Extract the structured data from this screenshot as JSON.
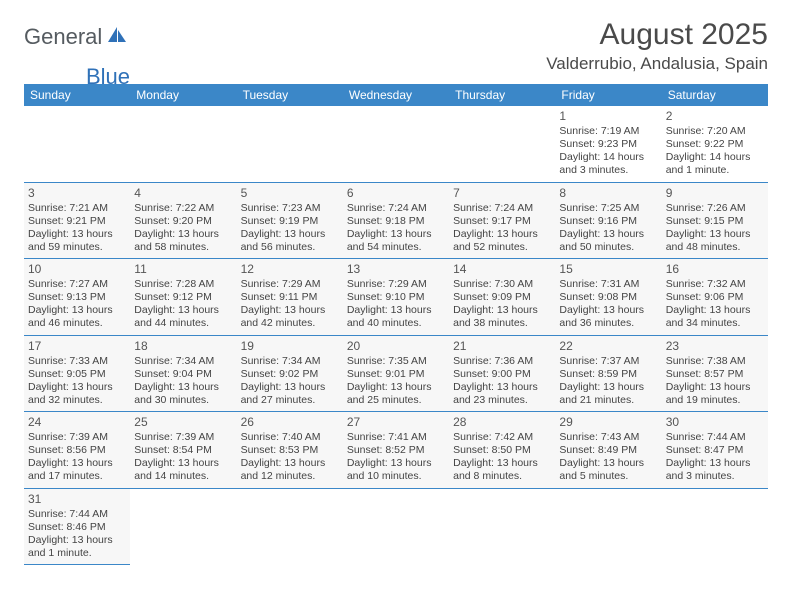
{
  "logo": {
    "text1": "General",
    "text2": "Blue"
  },
  "title": "August 2025",
  "location": "Valderrubio, Andalusia, Spain",
  "colors": {
    "header_bg": "#3b87c8",
    "header_text": "#ffffff",
    "cell_bg": "#f7f7f7",
    "border": "#3b87c8",
    "logo_gray": "#555b60",
    "logo_blue": "#2f71b8"
  },
  "day_headers": [
    "Sunday",
    "Monday",
    "Tuesday",
    "Wednesday",
    "Thursday",
    "Friday",
    "Saturday"
  ],
  "weeks": [
    [
      null,
      null,
      null,
      null,
      null,
      {
        "n": "1",
        "sr": "Sunrise: 7:19 AM",
        "ss": "Sunset: 9:23 PM",
        "dl": "Daylight: 14 hours and 3 minutes."
      },
      {
        "n": "2",
        "sr": "Sunrise: 7:20 AM",
        "ss": "Sunset: 9:22 PM",
        "dl": "Daylight: 14 hours and 1 minute."
      }
    ],
    [
      {
        "n": "3",
        "sr": "Sunrise: 7:21 AM",
        "ss": "Sunset: 9:21 PM",
        "dl": "Daylight: 13 hours and 59 minutes."
      },
      {
        "n": "4",
        "sr": "Sunrise: 7:22 AM",
        "ss": "Sunset: 9:20 PM",
        "dl": "Daylight: 13 hours and 58 minutes."
      },
      {
        "n": "5",
        "sr": "Sunrise: 7:23 AM",
        "ss": "Sunset: 9:19 PM",
        "dl": "Daylight: 13 hours and 56 minutes."
      },
      {
        "n": "6",
        "sr": "Sunrise: 7:24 AM",
        "ss": "Sunset: 9:18 PM",
        "dl": "Daylight: 13 hours and 54 minutes."
      },
      {
        "n": "7",
        "sr": "Sunrise: 7:24 AM",
        "ss": "Sunset: 9:17 PM",
        "dl": "Daylight: 13 hours and 52 minutes."
      },
      {
        "n": "8",
        "sr": "Sunrise: 7:25 AM",
        "ss": "Sunset: 9:16 PM",
        "dl": "Daylight: 13 hours and 50 minutes."
      },
      {
        "n": "9",
        "sr": "Sunrise: 7:26 AM",
        "ss": "Sunset: 9:15 PM",
        "dl": "Daylight: 13 hours and 48 minutes."
      }
    ],
    [
      {
        "n": "10",
        "sr": "Sunrise: 7:27 AM",
        "ss": "Sunset: 9:13 PM",
        "dl": "Daylight: 13 hours and 46 minutes."
      },
      {
        "n": "11",
        "sr": "Sunrise: 7:28 AM",
        "ss": "Sunset: 9:12 PM",
        "dl": "Daylight: 13 hours and 44 minutes."
      },
      {
        "n": "12",
        "sr": "Sunrise: 7:29 AM",
        "ss": "Sunset: 9:11 PM",
        "dl": "Daylight: 13 hours and 42 minutes."
      },
      {
        "n": "13",
        "sr": "Sunrise: 7:29 AM",
        "ss": "Sunset: 9:10 PM",
        "dl": "Daylight: 13 hours and 40 minutes."
      },
      {
        "n": "14",
        "sr": "Sunrise: 7:30 AM",
        "ss": "Sunset: 9:09 PM",
        "dl": "Daylight: 13 hours and 38 minutes."
      },
      {
        "n": "15",
        "sr": "Sunrise: 7:31 AM",
        "ss": "Sunset: 9:08 PM",
        "dl": "Daylight: 13 hours and 36 minutes."
      },
      {
        "n": "16",
        "sr": "Sunrise: 7:32 AM",
        "ss": "Sunset: 9:06 PM",
        "dl": "Daylight: 13 hours and 34 minutes."
      }
    ],
    [
      {
        "n": "17",
        "sr": "Sunrise: 7:33 AM",
        "ss": "Sunset: 9:05 PM",
        "dl": "Daylight: 13 hours and 32 minutes."
      },
      {
        "n": "18",
        "sr": "Sunrise: 7:34 AM",
        "ss": "Sunset: 9:04 PM",
        "dl": "Daylight: 13 hours and 30 minutes."
      },
      {
        "n": "19",
        "sr": "Sunrise: 7:34 AM",
        "ss": "Sunset: 9:02 PM",
        "dl": "Daylight: 13 hours and 27 minutes."
      },
      {
        "n": "20",
        "sr": "Sunrise: 7:35 AM",
        "ss": "Sunset: 9:01 PM",
        "dl": "Daylight: 13 hours and 25 minutes."
      },
      {
        "n": "21",
        "sr": "Sunrise: 7:36 AM",
        "ss": "Sunset: 9:00 PM",
        "dl": "Daylight: 13 hours and 23 minutes."
      },
      {
        "n": "22",
        "sr": "Sunrise: 7:37 AM",
        "ss": "Sunset: 8:59 PM",
        "dl": "Daylight: 13 hours and 21 minutes."
      },
      {
        "n": "23",
        "sr": "Sunrise: 7:38 AM",
        "ss": "Sunset: 8:57 PM",
        "dl": "Daylight: 13 hours and 19 minutes."
      }
    ],
    [
      {
        "n": "24",
        "sr": "Sunrise: 7:39 AM",
        "ss": "Sunset: 8:56 PM",
        "dl": "Daylight: 13 hours and 17 minutes."
      },
      {
        "n": "25",
        "sr": "Sunrise: 7:39 AM",
        "ss": "Sunset: 8:54 PM",
        "dl": "Daylight: 13 hours and 14 minutes."
      },
      {
        "n": "26",
        "sr": "Sunrise: 7:40 AM",
        "ss": "Sunset: 8:53 PM",
        "dl": "Daylight: 13 hours and 12 minutes."
      },
      {
        "n": "27",
        "sr": "Sunrise: 7:41 AM",
        "ss": "Sunset: 8:52 PM",
        "dl": "Daylight: 13 hours and 10 minutes."
      },
      {
        "n": "28",
        "sr": "Sunrise: 7:42 AM",
        "ss": "Sunset: 8:50 PM",
        "dl": "Daylight: 13 hours and 8 minutes."
      },
      {
        "n": "29",
        "sr": "Sunrise: 7:43 AM",
        "ss": "Sunset: 8:49 PM",
        "dl": "Daylight: 13 hours and 5 minutes."
      },
      {
        "n": "30",
        "sr": "Sunrise: 7:44 AM",
        "ss": "Sunset: 8:47 PM",
        "dl": "Daylight: 13 hours and 3 minutes."
      }
    ],
    [
      {
        "n": "31",
        "sr": "Sunrise: 7:44 AM",
        "ss": "Sunset: 8:46 PM",
        "dl": "Daylight: 13 hours and 1 minute."
      },
      null,
      null,
      null,
      null,
      null,
      null
    ]
  ]
}
